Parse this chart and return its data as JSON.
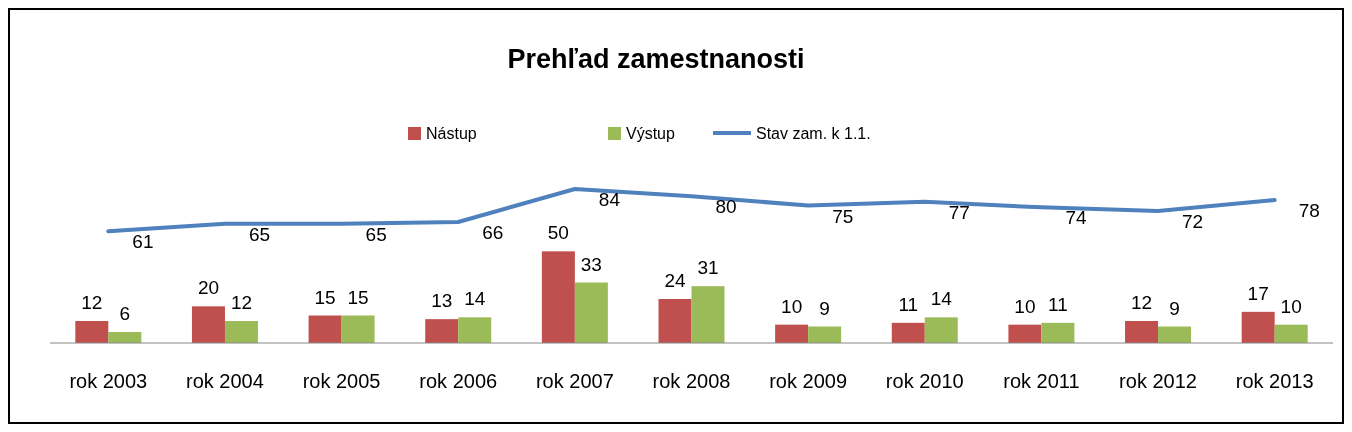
{
  "chart_data": {
    "type": "bar",
    "title": "Prehľad zamestnanosti",
    "categories": [
      "rok 2003",
      "rok 2004",
      "rok 2005",
      "rok 2006",
      "rok 2007",
      "rok 2008",
      "rok 2009",
      "rok 2010",
      "rok 2011",
      "rok 2012",
      "rok 2013"
    ],
    "series": [
      {
        "name": "Nástup",
        "color": "#c0504d",
        "values": [
          12,
          20,
          15,
          13,
          50,
          24,
          10,
          11,
          10,
          12,
          17
        ]
      },
      {
        "name": "Výstup",
        "color": "#9bbb59",
        "values": [
          6,
          12,
          15,
          14,
          33,
          31,
          9,
          14,
          11,
          9,
          10
        ]
      },
      {
        "name": "Stav zam. k 1.1.",
        "color": "#4f81bd",
        "type": "line",
        "values": [
          61,
          65,
          65,
          66,
          84,
          80,
          75,
          77,
          74,
          72,
          78
        ]
      }
    ],
    "data_labels": true,
    "legend": "top"
  }
}
